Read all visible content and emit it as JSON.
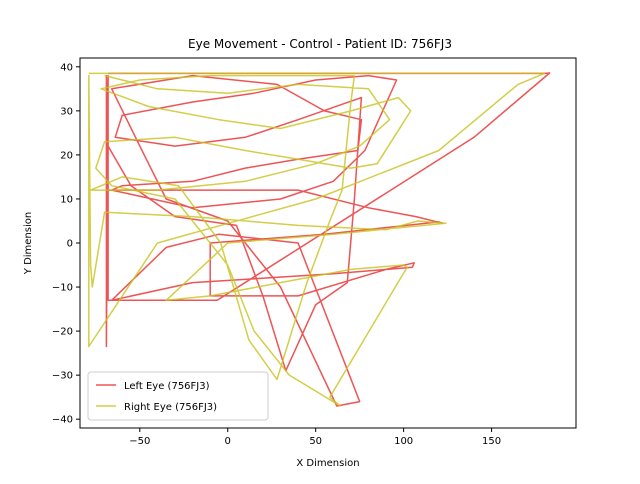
{
  "chart_data": {
    "type": "line",
    "title": "Eye Movement - Control - Patient ID: 756FJ3",
    "xlabel": "X Dimension",
    "ylabel": "Y Dimension",
    "xlim": [
      -84,
      198
    ],
    "ylim": [
      -42,
      42
    ],
    "xticks": [
      -50,
      0,
      50,
      100,
      150
    ],
    "yticks": [
      -40,
      -30,
      -20,
      -10,
      0,
      10,
      20,
      30,
      40
    ],
    "grid": false,
    "legend_position": "lower-left",
    "series": [
      {
        "name": "Left Eye (756FJ3)",
        "color": "#e8292a",
        "points": [
          [
            -68,
            38.5
          ],
          [
            180,
            38.5
          ],
          [
            183,
            38.6
          ],
          [
            140,
            24
          ],
          [
            -6,
            -13
          ],
          [
            -68,
            -13
          ],
          [
            -68,
            38
          ],
          [
            -69,
            -23.5
          ],
          [
            -69,
            38
          ],
          [
            -68,
            12
          ],
          [
            40,
            12
          ],
          [
            80,
            8
          ],
          [
            107,
            6
          ],
          [
            122,
            4.5
          ],
          [
            120,
            4.8
          ],
          [
            55,
            2
          ],
          [
            -10,
            0
          ],
          [
            -10,
            -12
          ],
          [
            40,
            -12
          ],
          [
            90,
            -6
          ],
          [
            106,
            -4.5
          ],
          [
            105,
            -5.5
          ],
          [
            60,
            -7
          ],
          [
            -20,
            -9
          ],
          [
            -66,
            -13
          ],
          [
            -35,
            -1
          ],
          [
            -5,
            2
          ],
          [
            40,
            0
          ],
          [
            75,
            -36
          ],
          [
            62,
            -37
          ],
          [
            30,
            -10
          ],
          [
            0,
            5
          ],
          [
            -35,
            10
          ],
          [
            -50,
            22
          ],
          [
            -66,
            35
          ],
          [
            -20,
            38
          ],
          [
            28,
            36
          ],
          [
            55,
            30
          ],
          [
            76,
            28
          ],
          [
            74,
            21
          ],
          [
            40,
            19
          ],
          [
            10,
            17
          ],
          [
            -20,
            14
          ],
          [
            -60,
            13
          ],
          [
            -66,
            12
          ],
          [
            -20,
            8
          ],
          [
            30,
            10
          ],
          [
            60,
            14
          ],
          [
            78,
            21
          ],
          [
            96,
            37
          ],
          [
            80,
            38
          ],
          [
            50,
            37
          ],
          [
            15,
            34
          ],
          [
            -20,
            32
          ],
          [
            -60,
            29
          ],
          [
            -64,
            24
          ],
          [
            -30,
            22
          ],
          [
            10,
            24
          ],
          [
            40,
            28
          ],
          [
            76,
            33
          ],
          [
            72,
            10
          ],
          [
            68,
            -9
          ],
          [
            50,
            -14
          ],
          [
            33,
            -29
          ],
          [
            20,
            -12
          ],
          [
            5,
            4
          ],
          [
            -30,
            6
          ],
          [
            -55,
            13
          ],
          [
            -68,
            22
          ]
        ]
      },
      {
        "name": "Right Eye (756FJ3)",
        "color": "#c8c21c",
        "points": [
          [
            -79,
            38.5
          ],
          [
            180,
            38.5
          ],
          [
            165,
            36
          ],
          [
            120,
            21
          ],
          [
            50,
            10
          ],
          [
            -40,
            0
          ],
          [
            -79,
            -23.5
          ],
          [
            -79,
            38
          ],
          [
            -78,
            -5
          ],
          [
            -77,
            -10
          ],
          [
            -70,
            7
          ],
          [
            -20,
            6
          ],
          [
            40,
            4
          ],
          [
            90,
            3
          ],
          [
            108,
            5
          ],
          [
            124,
            4.5
          ],
          [
            60,
            2
          ],
          [
            0,
            0
          ],
          [
            -35,
            -13
          ],
          [
            -10,
            -12
          ],
          [
            30,
            -9
          ],
          [
            70,
            -6
          ],
          [
            100,
            -5
          ],
          [
            102,
            -5.5
          ],
          [
            58,
            -35
          ],
          [
            64,
            -37
          ],
          [
            35,
            -30
          ],
          [
            15,
            -20
          ],
          [
            0,
            -5
          ],
          [
            -30,
            10
          ],
          [
            -66,
            13
          ],
          [
            -75,
            17
          ],
          [
            -70,
            23
          ],
          [
            -30,
            24
          ],
          [
            10,
            21
          ],
          [
            40,
            19
          ],
          [
            70,
            17
          ],
          [
            85,
            18
          ],
          [
            104,
            30
          ],
          [
            97,
            33
          ],
          [
            70,
            30
          ],
          [
            30,
            26
          ],
          [
            -5,
            28
          ],
          [
            -45,
            31
          ],
          [
            -72,
            35
          ],
          [
            -50,
            37
          ],
          [
            -10,
            38
          ],
          [
            40,
            38
          ],
          [
            72,
            38
          ],
          [
            70,
            32
          ],
          [
            65,
            12
          ],
          [
            58,
            5
          ],
          [
            45,
            -9
          ],
          [
            38,
            -18
          ],
          [
            28,
            -31
          ],
          [
            12,
            -22
          ],
          [
            -4,
            0
          ],
          [
            -28,
            13
          ],
          [
            -60,
            15
          ],
          [
            -78,
            12
          ],
          [
            -40,
            12
          ],
          [
            10,
            14
          ],
          [
            50,
            18
          ],
          [
            75,
            22
          ],
          [
            92,
            28
          ],
          [
            80,
            35
          ],
          [
            40,
            36
          ],
          [
            0,
            34
          ],
          [
            -40,
            35
          ],
          [
            -70,
            38
          ]
        ]
      }
    ]
  }
}
